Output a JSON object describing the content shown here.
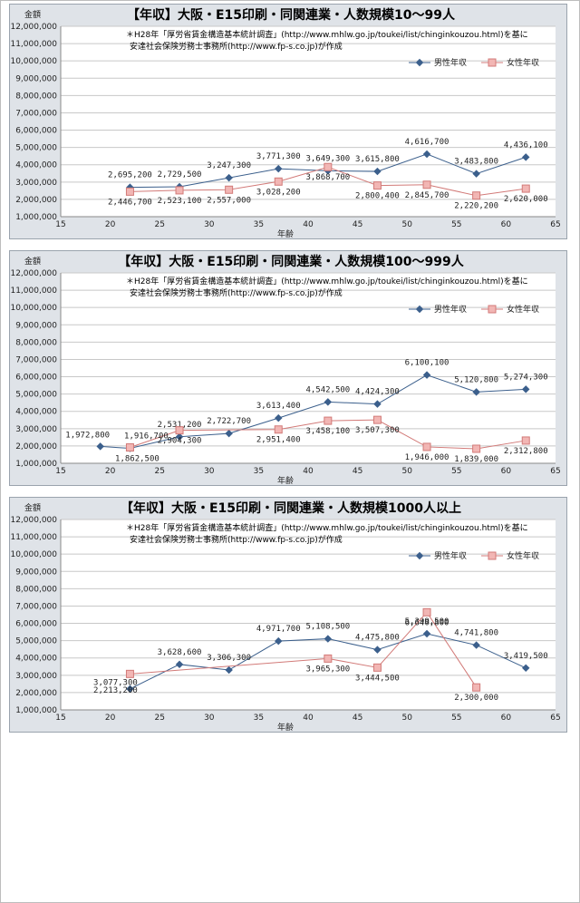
{
  "chart_data": [
    {
      "type": "line",
      "title": "【年収】大阪・E15印刷・同関連業・人数規模10～99人",
      "ylabel": "金額",
      "xlabel": "年齢",
      "note": [
        "＊H28年「厚労省賃金構造基本統計調査」(http://www.mhlw.go.jp/toukei/list/chinginkouzou.html)を基に",
        "安達社会保険労務士事務所(http://www.fp-s.co.jp)が作成"
      ],
      "xlim": [
        15,
        65
      ],
      "ylim": [
        1000000,
        12000000
      ],
      "xticks": [
        "15",
        "20",
        "25",
        "30",
        "35",
        "40",
        "45",
        "50",
        "55",
        "60",
        "65"
      ],
      "yticks": [
        "1,000,000",
        "2,000,000",
        "3,000,000",
        "4,000,000",
        "5,000,000",
        "6,000,000",
        "7,000,000",
        "8,000,000",
        "9,000,000",
        "10,000,000",
        "11,000,000",
        "12,000,000"
      ],
      "legend_position": "top-right",
      "grid": true,
      "series": [
        {
          "name": "男性年収",
          "color": "#3b5f8c",
          "x": [
            22,
            27,
            32,
            37,
            42,
            47,
            52,
            57,
            62
          ],
          "values": [
            2695200,
            2729500,
            3247300,
            3771300,
            3649300,
            3615800,
            4616700,
            3483800,
            4436100
          ],
          "labels": [
            "2,695,200",
            "2,729,500",
            "3,247,300",
            "3,771,300",
            "3,649,300",
            "3,615,800",
            "4,616,700",
            "3,483,800",
            "4,436,100"
          ]
        },
        {
          "name": "女性年収",
          "color": "#d27a78",
          "x": [
            22,
            27,
            32,
            37,
            42,
            47,
            52,
            57,
            62
          ],
          "values": [
            2446700,
            2523100,
            2557000,
            3028200,
            3868700,
            2800400,
            2845700,
            2220200,
            2620000
          ],
          "labels": [
            "2,446,700",
            "2,523,100",
            "2,557,000",
            "3,028,200",
            "3,868,700",
            "2,800,400",
            "2,845,700",
            "2,220,200",
            "2,620,000"
          ]
        }
      ]
    },
    {
      "type": "line",
      "title": "【年収】大阪・E15印刷・同関連業・人数規模100～999人",
      "ylabel": "金額",
      "xlabel": "年齢",
      "note": [
        "＊H28年「厚労省賃金構造基本統計調査」(http://www.mhlw.go.jp/toukei/list/chinginkouzou.html)を基に",
        "安達社会保険労務士事務所(http://www.fp-s.co.jp)が作成"
      ],
      "xlim": [
        15,
        65
      ],
      "ylim": [
        1000000,
        12000000
      ],
      "xticks": [
        "15",
        "20",
        "25",
        "30",
        "35",
        "40",
        "45",
        "50",
        "55",
        "60",
        "65"
      ],
      "yticks": [
        "1,000,000",
        "2,000,000",
        "3,000,000",
        "4,000,000",
        "5,000,000",
        "6,000,000",
        "7,000,000",
        "8,000,000",
        "9,000,000",
        "10,000,000",
        "11,000,000",
        "12,000,000"
      ],
      "legend_position": "top-right",
      "grid": true,
      "series": [
        {
          "name": "男性年収",
          "color": "#3b5f8c",
          "x": [
            19,
            22,
            27,
            32,
            37,
            42,
            47,
            52,
            57,
            62
          ],
          "values": [
            1972800,
            1862500,
            2531200,
            2722700,
            3613400,
            4542500,
            4424300,
            6100100,
            5120800,
            5274300
          ],
          "labels": [
            "1,972,800",
            "1,862,500",
            "2,531,200",
            "2,722,700",
            "3,613,400",
            "4,542,500",
            "4,424,300",
            "6,100,100",
            "5,120,800",
            "5,274,300"
          ]
        },
        {
          "name": "女性年収",
          "color": "#d27a78",
          "x": [
            22,
            27,
            37,
            42,
            47,
            52,
            57,
            62
          ],
          "values": [
            1916700,
            2904300,
            2951400,
            3458100,
            3507300,
            1946000,
            1839000,
            2312800
          ],
          "labels": [
            "1,916,700",
            "2,904,300",
            "2,951,400",
            "3,458,100",
            "3,507,300",
            "1,946,000",
            "1,839,000",
            "2,312,800"
          ]
        }
      ]
    },
    {
      "type": "line",
      "title": "【年収】大阪・E15印刷・同関連業・人数規模1000人以上",
      "ylabel": "金額",
      "xlabel": "年齢",
      "note": [
        "＊H28年「厚労省賃金構造基本統計調査」(http://www.mhlw.go.jp/toukei/list/chinginkouzou.html)を基に",
        "安達社会保険労務士事務所(http://www.fp-s.co.jp)が作成"
      ],
      "xlim": [
        15,
        65
      ],
      "ylim": [
        1000000,
        12000000
      ],
      "xticks": [
        "15",
        "20",
        "25",
        "30",
        "35",
        "40",
        "45",
        "50",
        "55",
        "60",
        "65"
      ],
      "yticks": [
        "1,000,000",
        "2,000,000",
        "3,000,000",
        "4,000,000",
        "5,000,000",
        "6,000,000",
        "7,000,000",
        "8,000,000",
        "9,000,000",
        "10,000,000",
        "11,000,000",
        "12,000,000"
      ],
      "legend_position": "top-right",
      "grid": true,
      "series": [
        {
          "name": "男性年収",
          "color": "#3b5f8c",
          "x": [
            22,
            27,
            32,
            37,
            42,
            47,
            52,
            57,
            62
          ],
          "values": [
            2213200,
            3628600,
            3306300,
            4971700,
            5108500,
            4475800,
            5399500,
            4741800,
            3419500
          ],
          "labels": [
            "2,213,200",
            "3,628,600",
            "3,306,300",
            "4,971,700",
            "5,108,500",
            "4,475,800",
            "5,399,500",
            "4,741,800",
            "3,419,500"
          ]
        },
        {
          "name": "女性年収",
          "color": "#d27a78",
          "x": [
            22,
            42,
            47,
            52,
            57
          ],
          "values": [
            3077300,
            3965300,
            3444500,
            6640800,
            2300000
          ],
          "labels": [
            "3,077,300",
            "3,965,300",
            "3,444,500",
            "6,640,800",
            "2,300,000"
          ]
        }
      ]
    }
  ]
}
